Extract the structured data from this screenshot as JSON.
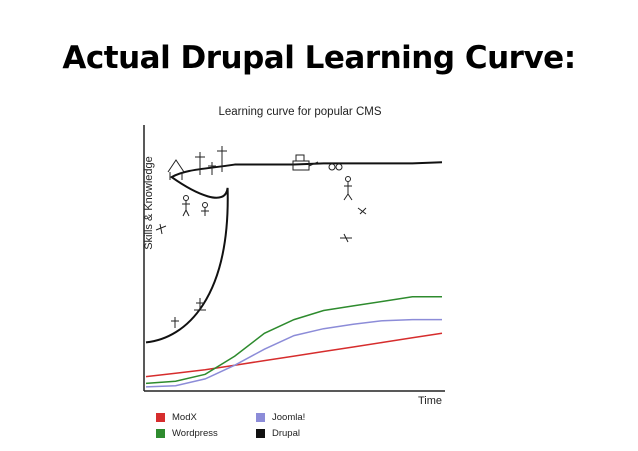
{
  "slide_title": "Actual Drupal Learning Curve:",
  "chart_data": {
    "type": "line",
    "title": "Learning curve for popular CMS",
    "xlabel": "Time",
    "ylabel": "Skills & Knowledge",
    "x": [
      0,
      10,
      20,
      30,
      40,
      50,
      60,
      70,
      80,
      90,
      100
    ],
    "ylim": [
      0,
      100
    ],
    "grid": false,
    "legend_position": "bottom-left",
    "series": [
      {
        "name": "ModX",
        "color": "#d62d2d",
        "values": [
          5,
          6.5,
          8,
          10,
          12,
          14,
          16,
          18,
          20,
          22,
          24
        ]
      },
      {
        "name": "Wordpress",
        "color": "#2e8b2e",
        "values": [
          2,
          3,
          6,
          14,
          24,
          30,
          34,
          36,
          38,
          40,
          40
        ]
      },
      {
        "name": "Joomla!",
        "color": "#8c8cd8",
        "values": [
          0.5,
          1,
          4,
          10,
          17,
          23,
          26,
          28,
          29.5,
          30,
          30
        ]
      },
      {
        "name": "Drupal",
        "color": "#111111",
        "values": [
          20,
          22,
          96,
          98,
          98,
          98,
          98.5,
          98.5,
          98.5,
          98.5,
          99
        ]
      }
    ]
  }
}
